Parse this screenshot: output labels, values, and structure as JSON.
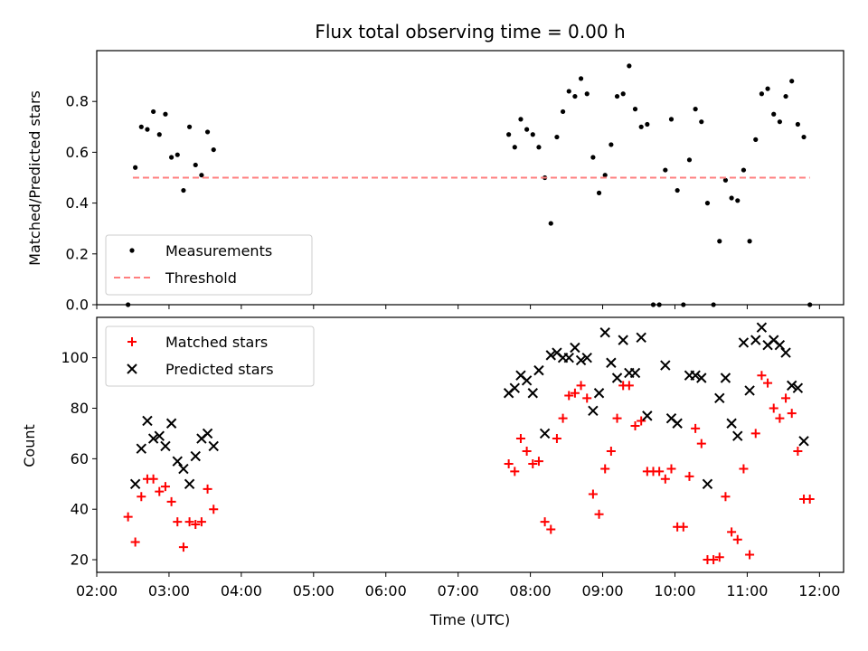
{
  "chart_data": [
    {
      "type": "scatter",
      "title": "Flux total observing time = 0.00 h",
      "xlabel": "",
      "ylabel": "Matched/Predicted stars",
      "xlim": [
        "02:00",
        "12:20"
      ],
      "ylim": [
        0,
        1.0
      ],
      "yticks": [
        "0.0",
        "0.2",
        "0.4",
        "0.6",
        "0.8"
      ],
      "grid": false,
      "legend_position": "lower-left",
      "series": [
        {
          "name": "Measurements",
          "marker": "dot",
          "color": "#000000",
          "points": [
            [
              "02:26",
              0.0
            ],
            [
              "02:32",
              0.54
            ],
            [
              "02:37",
              0.7
            ],
            [
              "02:42",
              0.69
            ],
            [
              "02:47",
              0.76
            ],
            [
              "02:52",
              0.67
            ],
            [
              "02:57",
              0.75
            ],
            [
              "03:02",
              0.58
            ],
            [
              "03:07",
              0.59
            ],
            [
              "03:12",
              0.45
            ],
            [
              "03:17",
              0.7
            ],
            [
              "03:22",
              0.55
            ],
            [
              "03:27",
              0.51
            ],
            [
              "03:32",
              0.68
            ],
            [
              "03:37",
              0.61
            ],
            [
              "07:42",
              0.67
            ],
            [
              "07:47",
              0.62
            ],
            [
              "07:52",
              0.73
            ],
            [
              "07:57",
              0.69
            ],
            [
              "08:02",
              0.67
            ],
            [
              "08:07",
              0.62
            ],
            [
              "08:12",
              0.5
            ],
            [
              "08:17",
              0.32
            ],
            [
              "08:22",
              0.66
            ],
            [
              "08:27",
              0.76
            ],
            [
              "08:32",
              0.84
            ],
            [
              "08:37",
              0.82
            ],
            [
              "08:42",
              0.89
            ],
            [
              "08:47",
              0.83
            ],
            [
              "08:52",
              0.58
            ],
            [
              "08:57",
              0.44
            ],
            [
              "09:02",
              0.51
            ],
            [
              "09:07",
              0.63
            ],
            [
              "09:12",
              0.82
            ],
            [
              "09:17",
              0.83
            ],
            [
              "09:22",
              0.94
            ],
            [
              "09:27",
              0.77
            ],
            [
              "09:32",
              0.7
            ],
            [
              "09:37",
              0.71
            ],
            [
              "09:42",
              0.0
            ],
            [
              "09:47",
              0.0
            ],
            [
              "09:52",
              0.53
            ],
            [
              "09:57",
              0.73
            ],
            [
              "10:02",
              0.45
            ],
            [
              "10:07",
              0.0
            ],
            [
              "10:12",
              0.57
            ],
            [
              "10:17",
              0.77
            ],
            [
              "10:22",
              0.72
            ],
            [
              "10:27",
              0.4
            ],
            [
              "10:32",
              0.0
            ],
            [
              "10:37",
              0.25
            ],
            [
              "10:42",
              0.49
            ],
            [
              "10:47",
              0.42
            ],
            [
              "10:52",
              0.41
            ],
            [
              "10:57",
              0.53
            ],
            [
              "11:02",
              0.25
            ],
            [
              "11:07",
              0.65
            ],
            [
              "11:12",
              0.83
            ],
            [
              "11:17",
              0.85
            ],
            [
              "11:22",
              0.75
            ],
            [
              "11:27",
              0.72
            ],
            [
              "11:32",
              0.82
            ],
            [
              "11:37",
              0.88
            ],
            [
              "11:42",
              0.71
            ],
            [
              "11:47",
              0.66
            ],
            [
              "11:52",
              0.0
            ]
          ]
        },
        {
          "name": "Threshold",
          "marker": "dashed-line",
          "color": "#ff7f7f",
          "points": [
            [
              "02:30",
              0.5
            ],
            [
              "11:52",
              0.5
            ]
          ]
        }
      ]
    },
    {
      "type": "scatter",
      "title": "",
      "xlabel": "Time (UTC)",
      "ylabel": "Count",
      "xlim": [
        "02:00",
        "12:20"
      ],
      "ylim": [
        15,
        116
      ],
      "yticks": [
        "20",
        "40",
        "60",
        "80",
        "100"
      ],
      "xticks": [
        "02:00",
        "03:00",
        "04:00",
        "05:00",
        "06:00",
        "07:00",
        "08:00",
        "09:00",
        "10:00",
        "11:00",
        "12:00"
      ],
      "grid": false,
      "legend_position": "upper-left",
      "series": [
        {
          "name": "Matched stars",
          "marker": "plus",
          "color": "#ff0000",
          "points": [
            [
              "02:26",
              37
            ],
            [
              "02:32",
              27
            ],
            [
              "02:37",
              45
            ],
            [
              "02:42",
              52
            ],
            [
              "02:47",
              52
            ],
            [
              "02:52",
              47
            ],
            [
              "02:57",
              49
            ],
            [
              "03:02",
              43
            ],
            [
              "03:07",
              35
            ],
            [
              "03:12",
              25
            ],
            [
              "03:17",
              35
            ],
            [
              "03:22",
              34
            ],
            [
              "03:27",
              35
            ],
            [
              "03:32",
              48
            ],
            [
              "03:37",
              40
            ],
            [
              "07:42",
              58
            ],
            [
              "07:47",
              55
            ],
            [
              "07:52",
              68
            ],
            [
              "07:57",
              63
            ],
            [
              "08:02",
              58
            ],
            [
              "08:07",
              59
            ],
            [
              "08:12",
              35
            ],
            [
              "08:17",
              32
            ],
            [
              "08:22",
              68
            ],
            [
              "08:27",
              76
            ],
            [
              "08:32",
              85
            ],
            [
              "08:37",
              86
            ],
            [
              "08:42",
              89
            ],
            [
              "08:47",
              84
            ],
            [
              "08:52",
              46
            ],
            [
              "08:57",
              38
            ],
            [
              "09:02",
              56
            ],
            [
              "09:07",
              63
            ],
            [
              "09:12",
              76
            ],
            [
              "09:17",
              89
            ],
            [
              "09:22",
              89
            ],
            [
              "09:27",
              73
            ],
            [
              "09:32",
              75
            ],
            [
              "09:37",
              55
            ],
            [
              "09:42",
              55
            ],
            [
              "09:47",
              55
            ],
            [
              "09:52",
              52
            ],
            [
              "09:57",
              56
            ],
            [
              "10:02",
              33
            ],
            [
              "10:07",
              33
            ],
            [
              "10:12",
              53
            ],
            [
              "10:17",
              72
            ],
            [
              "10:22",
              66
            ],
            [
              "10:27",
              20
            ],
            [
              "10:32",
              20
            ],
            [
              "10:37",
              21
            ],
            [
              "10:42",
              45
            ],
            [
              "10:47",
              31
            ],
            [
              "10:52",
              28
            ],
            [
              "10:57",
              56
            ],
            [
              "11:02",
              22
            ],
            [
              "11:07",
              70
            ],
            [
              "11:12",
              93
            ],
            [
              "11:17",
              90
            ],
            [
              "11:22",
              80
            ],
            [
              "11:27",
              76
            ],
            [
              "11:32",
              84
            ],
            [
              "11:37",
              78
            ],
            [
              "11:42",
              63
            ],
            [
              "11:47",
              44
            ],
            [
              "11:52",
              44
            ]
          ]
        },
        {
          "name": "Predicted stars",
          "marker": "x",
          "color": "#000000",
          "points": [
            [
              "02:32",
              50
            ],
            [
              "02:37",
              64
            ],
            [
              "02:42",
              75
            ],
            [
              "02:47",
              68
            ],
            [
              "02:52",
              69
            ],
            [
              "02:57",
              65
            ],
            [
              "03:02",
              74
            ],
            [
              "03:07",
              59
            ],
            [
              "03:12",
              56
            ],
            [
              "03:17",
              50
            ],
            [
              "03:22",
              61
            ],
            [
              "03:27",
              68
            ],
            [
              "03:32",
              70
            ],
            [
              "03:37",
              65
            ],
            [
              "07:42",
              86
            ],
            [
              "07:47",
              88
            ],
            [
              "07:52",
              93
            ],
            [
              "07:57",
              91
            ],
            [
              "08:02",
              86
            ],
            [
              "08:07",
              95
            ],
            [
              "08:12",
              70
            ],
            [
              "08:17",
              101
            ],
            [
              "08:22",
              102
            ],
            [
              "08:27",
              100
            ],
            [
              "08:32",
              100
            ],
            [
              "08:37",
              104
            ],
            [
              "08:42",
              99
            ],
            [
              "08:47",
              100
            ],
            [
              "08:52",
              79
            ],
            [
              "08:57",
              86
            ],
            [
              "09:02",
              110
            ],
            [
              "09:07",
              98
            ],
            [
              "09:12",
              92
            ],
            [
              "09:17",
              107
            ],
            [
              "09:22",
              94
            ],
            [
              "09:27",
              94
            ],
            [
              "09:32",
              108
            ],
            [
              "09:37",
              77
            ],
            [
              "09:52",
              97
            ],
            [
              "09:57",
              76
            ],
            [
              "10:02",
              74
            ],
            [
              "10:12",
              93
            ],
            [
              "10:17",
              93
            ],
            [
              "10:22",
              92
            ],
            [
              "10:27",
              50
            ],
            [
              "10:37",
              84
            ],
            [
              "10:42",
              92
            ],
            [
              "10:47",
              74
            ],
            [
              "10:52",
              69
            ],
            [
              "10:57",
              106
            ],
            [
              "11:02",
              87
            ],
            [
              "11:07",
              107
            ],
            [
              "11:12",
              112
            ],
            [
              "11:17",
              105
            ],
            [
              "11:22",
              107
            ],
            [
              "11:27",
              105
            ],
            [
              "11:32",
              102
            ],
            [
              "11:37",
              89
            ],
            [
              "11:42",
              88
            ],
            [
              "11:47",
              67
            ]
          ]
        }
      ]
    }
  ]
}
